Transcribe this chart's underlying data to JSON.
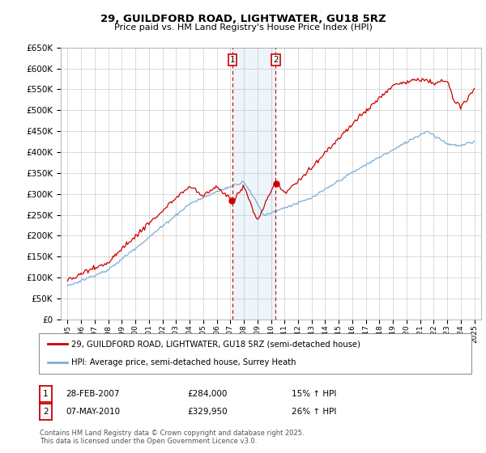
{
  "title": "29, GUILDFORD ROAD, LIGHTWATER, GU18 5RZ",
  "subtitle": "Price paid vs. HM Land Registry's House Price Index (HPI)",
  "legend_line1": "29, GUILDFORD ROAD, LIGHTWATER, GU18 5RZ (semi-detached house)",
  "legend_line2": "HPI: Average price, semi-detached house, Surrey Heath",
  "transaction1_date": "28-FEB-2007",
  "transaction1_price": "£284,000",
  "transaction1_hpi": "15% ↑ HPI",
  "transaction2_date": "07-MAY-2010",
  "transaction2_price": "£329,950",
  "transaction2_hpi": "26% ↑ HPI",
  "footnote": "Contains HM Land Registry data © Crown copyright and database right 2025.\nThis data is licensed under the Open Government Licence v3.0.",
  "red_color": "#cc0000",
  "blue_color": "#7aaed6",
  "grid_color": "#cccccc",
  "background_color": "#ffffff",
  "vline1_x": 2007.15,
  "vline2_x": 2010.35,
  "ylim_min": 0,
  "ylim_max": 650000,
  "xlim_min": 1994.5,
  "xlim_max": 2025.5,
  "ytick_step": 50000
}
